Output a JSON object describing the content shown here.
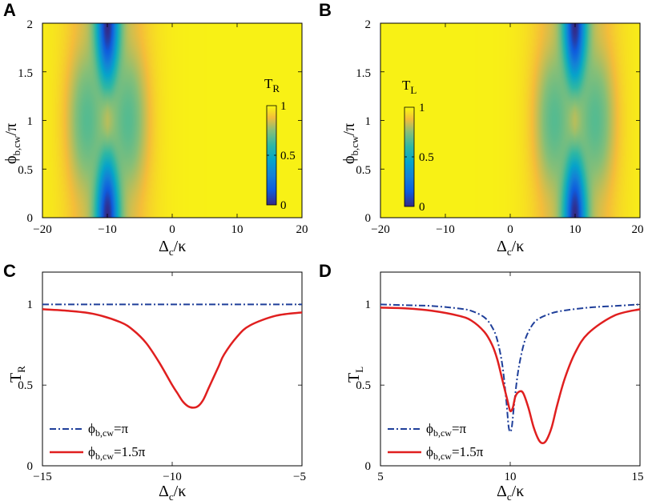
{
  "chart_data": [
    {
      "panel": "A",
      "type": "heatmap",
      "title": "",
      "xlabel": {
        "main": "Δ",
        "sub": "c",
        "suffix": "/κ"
      },
      "ylabel": {
        "main": "ϕ",
        "sub": "b,cw",
        "suffix": "/π"
      },
      "xlim": [
        -20,
        20
      ],
      "ylim": [
        0,
        2
      ],
      "xticks": [
        "−20",
        "−10",
        "0",
        "10",
        "20"
      ],
      "yticks": [
        "0",
        "0.5",
        "1",
        "1.5",
        "2"
      ],
      "colorbar": {
        "label_main": "T",
        "label_sub": "R",
        "ticks": [
          "0",
          "0.5",
          "1"
        ],
        "range": [
          0,
          1
        ]
      },
      "resonance_center": -10
    },
    {
      "panel": "B",
      "type": "heatmap",
      "title": "",
      "xlabel": {
        "main": "Δ",
        "sub": "c",
        "suffix": "/κ"
      },
      "ylabel": {
        "main": "ϕ",
        "sub": "b,cw",
        "suffix": "/π"
      },
      "xlim": [
        -20,
        20
      ],
      "ylim": [
        0,
        2
      ],
      "xticks": [
        "−20",
        "−10",
        "0",
        "10",
        "20"
      ],
      "yticks": [
        "0",
        "0.5",
        "1",
        "1.5",
        "2"
      ],
      "colorbar": {
        "label_main": "T",
        "label_sub": "L",
        "ticks": [
          "0",
          "0.5",
          "1"
        ],
        "range": [
          0,
          1
        ]
      },
      "resonance_center": 10
    },
    {
      "panel": "C",
      "type": "line",
      "title": "",
      "xlabel": {
        "main": "Δ",
        "sub": "c",
        "suffix": "/κ"
      },
      "ylabel": {
        "main": "T",
        "sub": "R",
        "suffix": ""
      },
      "xlim": [
        -15,
        -5
      ],
      "ylim": [
        0,
        1.2
      ],
      "xticks": [
        "−15",
        "−10",
        "−5"
      ],
      "yticks": [
        "0",
        "0.5",
        "1"
      ],
      "legend_position": "bottom-left",
      "series": [
        {
          "name_main": "ϕ",
          "name_sub": "b,cw",
          "name_suffix": "=π",
          "style": "dashdot",
          "color": "#1f3f9a",
          "x": [
            -15,
            -5
          ],
          "y": [
            1,
            1
          ]
        },
        {
          "name_main": "ϕ",
          "name_sub": "b,cw",
          "name_suffix": "=1.5π",
          "style": "solid",
          "color": "#e01f1f",
          "x": [
            -15,
            -14,
            -13,
            -12,
            -11.5,
            -11,
            -10.5,
            -10,
            -9.8,
            -9.6,
            -9.4,
            -9.2,
            -9,
            -8.8,
            -8.6,
            -8.4,
            -8.2,
            -8,
            -7.5,
            -7,
            -6,
            -5
          ],
          "y": [
            0.97,
            0.96,
            0.94,
            0.89,
            0.84,
            0.76,
            0.64,
            0.5,
            0.45,
            0.4,
            0.37,
            0.36,
            0.37,
            0.41,
            0.48,
            0.55,
            0.62,
            0.69,
            0.8,
            0.87,
            0.93,
            0.95
          ]
        }
      ]
    },
    {
      "panel": "D",
      "type": "line",
      "title": "",
      "xlabel": {
        "main": "Δ",
        "sub": "c",
        "suffix": "/κ"
      },
      "ylabel": {
        "main": "T",
        "sub": "L",
        "suffix": ""
      },
      "xlim": [
        5,
        15
      ],
      "ylim": [
        0,
        1.2
      ],
      "xticks": [
        "5",
        "10",
        "15"
      ],
      "yticks": [
        "0",
        "0.5",
        "1"
      ],
      "legend_position": "bottom-left",
      "series": [
        {
          "name_main": "ϕ",
          "name_sub": "b,cw",
          "name_suffix": "=π",
          "style": "dashdot",
          "color": "#1f3f9a",
          "x": [
            5,
            6,
            7,
            8,
            8.5,
            9,
            9.3,
            9.5,
            9.7,
            9.85,
            9.95,
            10.05,
            10.15,
            10.3,
            10.5,
            10.7,
            11,
            11.5,
            12,
            13,
            14,
            15
          ],
          "y": [
            1,
            0.995,
            0.99,
            0.975,
            0.96,
            0.92,
            0.86,
            0.78,
            0.62,
            0.4,
            0.23,
            0.23,
            0.38,
            0.58,
            0.74,
            0.83,
            0.9,
            0.94,
            0.96,
            0.98,
            0.99,
            1.0
          ]
        },
        {
          "name_main": "ϕ",
          "name_sub": "b,cw",
          "name_suffix": "=1.5π",
          "style": "solid",
          "color": "#e01f1f",
          "x": [
            5,
            6,
            7,
            8,
            8.5,
            9,
            9.3,
            9.5,
            9.7,
            9.9,
            10.0,
            10.1,
            10.2,
            10.35,
            10.5,
            10.7,
            10.9,
            11.1,
            11.25,
            11.4,
            11.6,
            11.8,
            12.1,
            12.5,
            13,
            14,
            15
          ],
          "y": [
            0.98,
            0.975,
            0.96,
            0.93,
            0.9,
            0.83,
            0.75,
            0.66,
            0.53,
            0.4,
            0.34,
            0.36,
            0.43,
            0.46,
            0.45,
            0.36,
            0.24,
            0.16,
            0.14,
            0.16,
            0.24,
            0.37,
            0.54,
            0.7,
            0.82,
            0.93,
            0.97
          ]
        }
      ]
    }
  ],
  "panel_labels": [
    "A",
    "B",
    "C",
    "D"
  ]
}
